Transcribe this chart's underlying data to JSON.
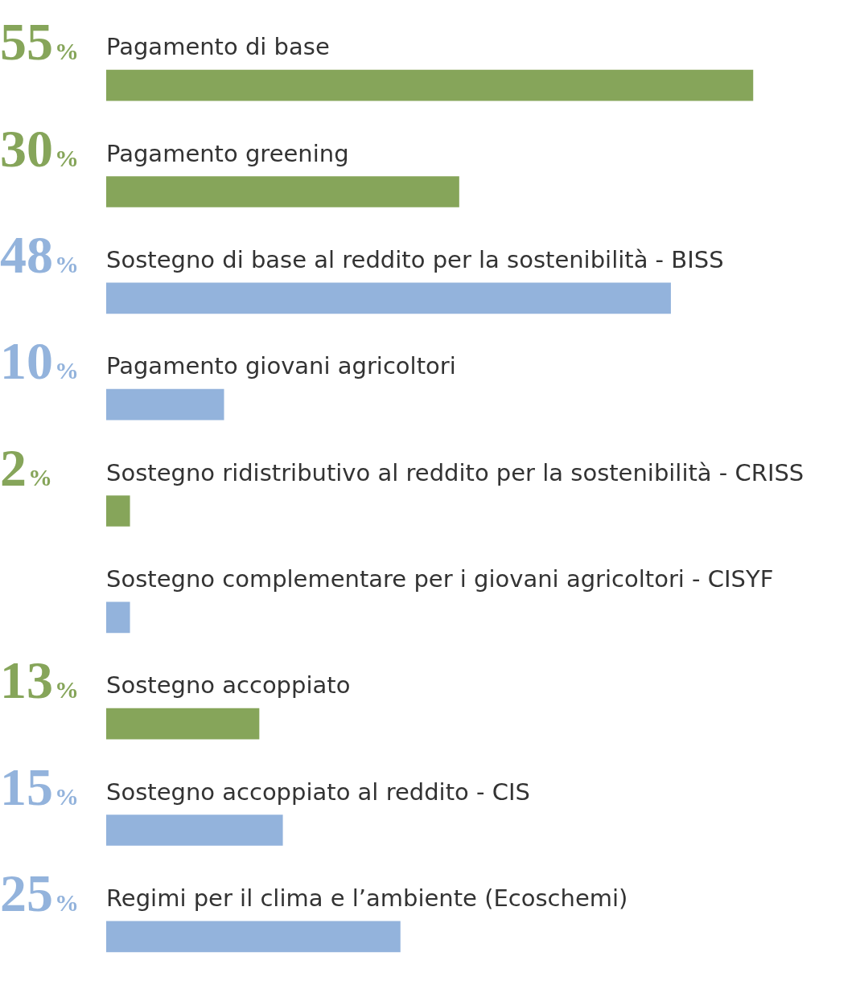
{
  "chart_data": {
    "type": "bar",
    "orientation": "horizontal",
    "tick_labels": "y",
    "categories": [
      "Pagamento di base",
      "Pagamento greening",
      "Sostegno di base al reddito per la sostenibilità - BISS",
      "Pagamento giovani agricoltori",
      "Sostegno ridistributivo al reddito per la sostenibilità - CRISS",
      "Sostegno complementare per i giovani agricoltori - CISYF",
      "Sostegno accoppiato",
      "Sostegno accoppiato al reddito - CIS",
      "Regimi per il clima e l’ambiente (Ecoschemi)"
    ],
    "values": [
      55,
      30,
      48,
      10,
      2,
      2,
      13,
      15,
      25
    ],
    "colors": [
      "#86a55a",
      "#86a55a",
      "#93b3dc",
      "#93b3dc",
      "#86a55a",
      "#93b3dc",
      "#86a55a",
      "#93b3dc",
      "#93b3dc"
    ],
    "value_labels": [
      "55%",
      "30%",
      "48%",
      "10%",
      "2%",
      null,
      "13%",
      "15%",
      "25%"
    ]
  }
}
